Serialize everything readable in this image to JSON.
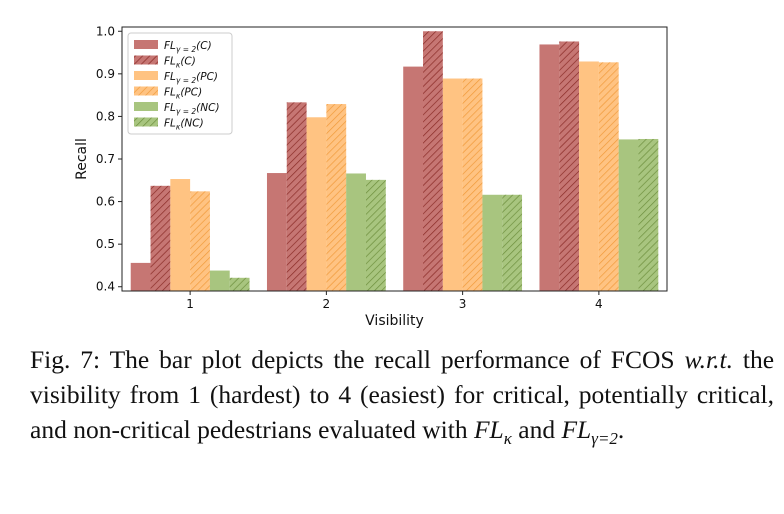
{
  "chart_data": {
    "type": "bar",
    "xlabel": "Visibility",
    "ylabel": "Recall",
    "categories": [
      "1",
      "2",
      "3",
      "4"
    ],
    "ylim": [
      0.39,
      1.01
    ],
    "yticks": [
      "0.4",
      "0.5",
      "0.6",
      "0.7",
      "0.8",
      "0.9",
      "1.0"
    ],
    "legend_position": "upper-left",
    "series": [
      {
        "name": "FL_γ=2(C)",
        "label_main": "FL",
        "label_sub": "γ = 2",
        "label_tail": "(C)",
        "color": "#b85450",
        "hatch": false,
        "values": [
          0.456,
          0.667,
          0.917,
          0.969
        ]
      },
      {
        "name": "FL_κ(C)",
        "label_main": "FL",
        "label_sub": "κ",
        "label_tail": "(C)",
        "color": "#b85450",
        "hatch": true,
        "values": [
          0.637,
          0.833,
          1.0,
          0.976
        ]
      },
      {
        "name": "FL_γ=2(PC)",
        "label_main": "FL",
        "label_sub": "γ = 2",
        "label_tail": "(PC)",
        "color": "#ffb463",
        "hatch": false,
        "values": [
          0.653,
          0.798,
          0.889,
          0.929
        ]
      },
      {
        "name": "FL_κ(PC)",
        "label_main": "FL",
        "label_sub": "κ",
        "label_tail": "(PC)",
        "color": "#ffb463",
        "hatch": true,
        "values": [
          0.624,
          0.829,
          0.889,
          0.927
        ]
      },
      {
        "name": "FL_γ=2(NC)",
        "label_main": "FL",
        "label_sub": "γ = 2",
        "label_tail": "(NC)",
        "color": "#92b65f",
        "hatch": false,
        "values": [
          0.438,
          0.666,
          0.616,
          0.746
        ]
      },
      {
        "name": "FL_κ(NC)",
        "label_main": "FL",
        "label_sub": "κ",
        "label_tail": "(NC)",
        "color": "#92b65f",
        "hatch": true,
        "values": [
          0.421,
          0.651,
          0.616,
          0.747
        ]
      }
    ]
  },
  "caption": {
    "label": "Fig. 7:",
    "text1": "The bar plot depicts the recall performance of FCOS",
    "wrt": "w.r.t.",
    "text2": "the visibility from 1 (hardest) to 4 (easiest) for critical, potentially critical, and non-critical pedestrians evaluated with",
    "fl1_main": "FL",
    "fl1_sub": "κ",
    "and": "and",
    "fl2_main": "FL",
    "fl2_sub": "γ=2",
    "end": "."
  }
}
